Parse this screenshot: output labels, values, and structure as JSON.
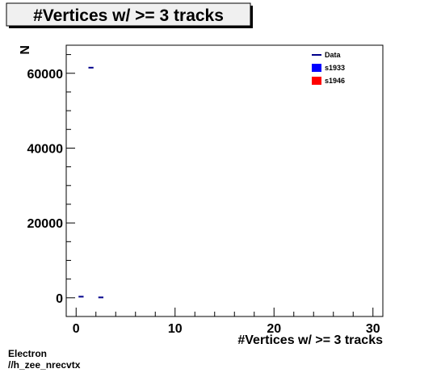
{
  "chart_data": {
    "type": "histogram",
    "title": "#Vertices w/ >= 3 tracks",
    "xlabel": "#Vertices w/ >= 3 tracks",
    "ylabel": "N",
    "xlim": [
      -1,
      31
    ],
    "ylim": [
      -5000,
      67500
    ],
    "x_ticks": [
      0,
      10,
      20,
      30
    ],
    "y_ticks": [
      0,
      20000,
      40000,
      60000
    ],
    "grid": false,
    "legend_position": "top-right",
    "series": [
      {
        "name": "Data",
        "color": "#00008b",
        "style": "line",
        "bins": [
          {
            "x0": 0,
            "x1": 1,
            "y": 300
          },
          {
            "x0": 1,
            "x1": 2,
            "y": 61500
          },
          {
            "x0": 2,
            "x1": 3,
            "y": 100
          }
        ]
      },
      {
        "name": "s1933",
        "color": "#0000ff",
        "style": "fill",
        "bins": []
      },
      {
        "name": "s1946",
        "color": "#ff0000",
        "style": "fill",
        "bins": []
      }
    ]
  },
  "footer": {
    "line1": "Electron",
    "line2": "//h_zee_nrecvtx"
  }
}
